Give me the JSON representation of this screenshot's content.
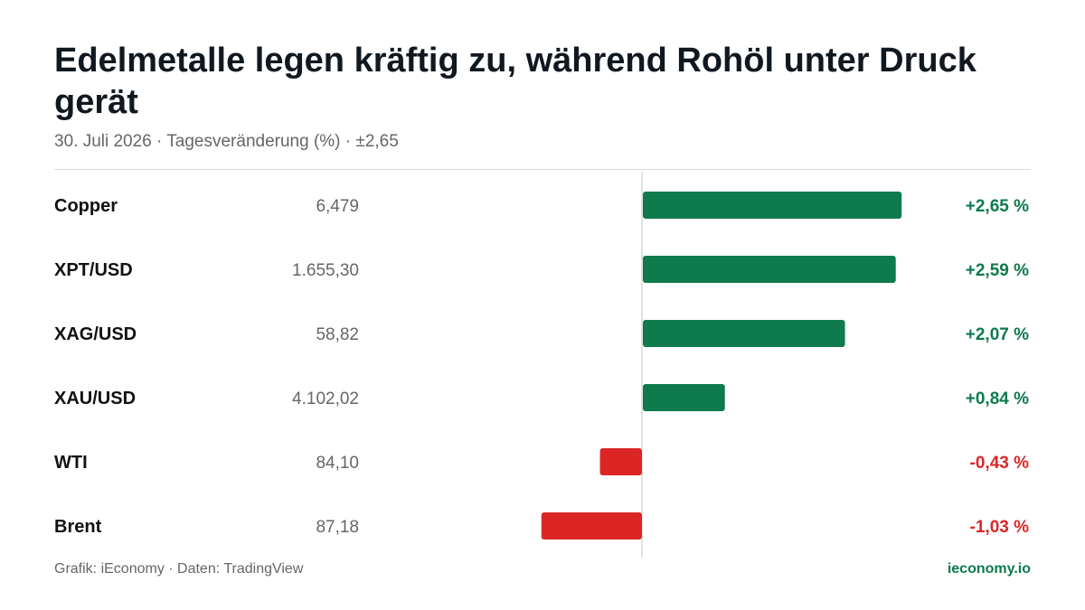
{
  "header": {
    "title": "Edelmetalle legen kräftig zu, während Rohöl unter Druck gerät",
    "subtitle": "30. Juli 2026 · Tagesveränderung (%) · ±2,65"
  },
  "footer": {
    "source": "Grafik: iEconomy · Daten: TradingView",
    "brand": "ieconomy.io"
  },
  "colors": {
    "positive": "#0e7a4d",
    "negative": "#dc2626",
    "label": "#111111",
    "price": "#666666",
    "zero_line": "#d9d9d9"
  },
  "chart_data": {
    "type": "bar",
    "orientation": "horizontal",
    "unit": "%",
    "xlim": [
      -2.65,
      2.65
    ],
    "grid": false,
    "rows": [
      {
        "label": "Copper",
        "price": "6,479",
        "value": 2.65,
        "value_label": "+2,65 %"
      },
      {
        "label": "XPT/USD",
        "price": "1.655,30",
        "value": 2.59,
        "value_label": "+2,59 %"
      },
      {
        "label": "XAG/USD",
        "price": "58,82",
        "value": 2.07,
        "value_label": "+2,07 %"
      },
      {
        "label": "XAU/USD",
        "price": "4.102,02",
        "value": 0.84,
        "value_label": "+0,84 %"
      },
      {
        "label": "WTI",
        "price": "84,10",
        "value": -0.43,
        "value_label": "-0,43 %"
      },
      {
        "label": "Brent",
        "price": "87,18",
        "value": -1.03,
        "value_label": "-1,03 %"
      }
    ]
  }
}
